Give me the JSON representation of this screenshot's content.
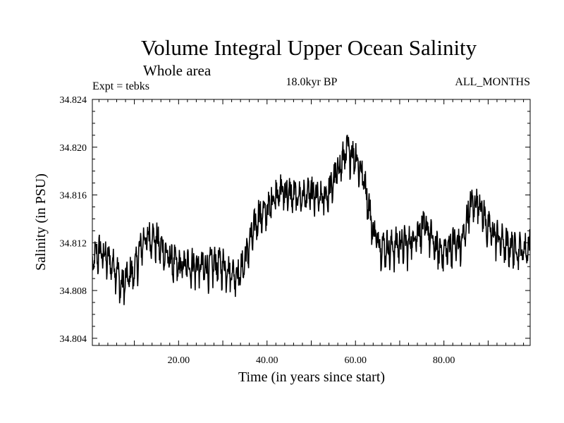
{
  "chart_data": {
    "type": "line",
    "title": "Volume Integral Upper Ocean Salinity",
    "subtitle": "Whole area",
    "info_left": "Expt = tebks",
    "info_center": "18.0kyr BP",
    "info_right": "ALL_MONTHS",
    "xlabel": "Time (in years since start)",
    "ylabel": "Salinity (in PSU)",
    "xlim": [
      0.5,
      99.5
    ],
    "ylim": [
      34.8034,
      34.824
    ],
    "x_ticks": [
      20,
      40,
      60,
      80
    ],
    "x_tick_labels": [
      "20.00",
      "40.00",
      "60.00",
      "80.00"
    ],
    "y_ticks": [
      34.804,
      34.808,
      34.812,
      34.816,
      34.82,
      34.824
    ],
    "y_tick_labels": [
      "34.804",
      "34.808",
      "34.812",
      "34.816",
      "34.820",
      "34.824"
    ],
    "series": [
      {
        "name": "Volume integral upper ocean salinity",
        "color": "#000000",
        "samples_per_year": 12,
        "x": [
          0.5,
          2,
          4,
          6,
          7,
          8,
          10,
          12,
          14,
          16,
          18,
          20,
          22,
          24,
          26,
          28,
          30,
          32,
          34,
          36,
          38,
          40,
          42,
          44,
          46,
          48,
          50,
          52,
          54,
          56,
          58,
          60,
          62,
          64,
          66,
          68,
          70,
          72,
          74,
          76,
          78,
          80,
          82,
          84,
          86,
          88,
          90,
          92,
          94,
          96,
          98,
          99.5
        ],
        "y": [
          34.8102,
          34.8113,
          34.8106,
          34.8098,
          34.8082,
          34.8088,
          34.8096,
          34.8122,
          34.8125,
          34.8116,
          34.8106,
          34.8099,
          34.8101,
          34.81,
          34.8098,
          34.8102,
          34.8101,
          34.8095,
          34.8094,
          34.8118,
          34.8142,
          34.8146,
          34.8162,
          34.8163,
          34.8158,
          34.8159,
          34.816,
          34.8155,
          34.8162,
          34.818,
          34.8196,
          34.8193,
          34.8172,
          34.8129,
          34.8117,
          34.8115,
          34.8119,
          34.8118,
          34.8129,
          34.8133,
          34.8116,
          34.8112,
          34.8119,
          34.8118,
          34.8151,
          34.8154,
          34.8131,
          34.8125,
          34.8117,
          34.8116,
          34.8113,
          34.8118
        ],
        "fluctuation_amplitude": 0.0022
      }
    ]
  }
}
